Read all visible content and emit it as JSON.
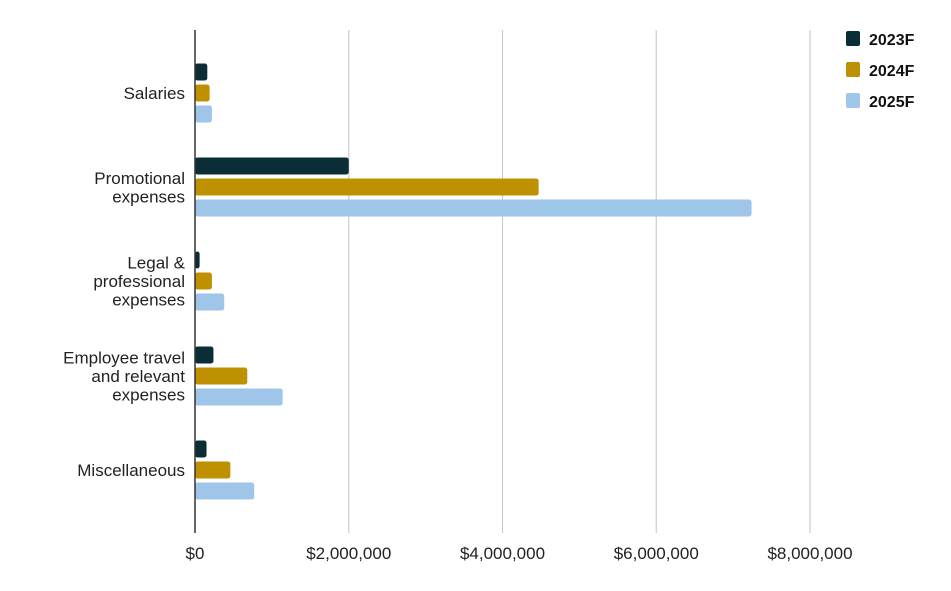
{
  "chart_data": {
    "type": "bar",
    "orientation": "horizontal",
    "categories": [
      [
        "Salaries"
      ],
      [
        "Promotional",
        "expenses"
      ],
      [
        "Legal &",
        "professional",
        "expenses"
      ],
      [
        "Employee travel",
        "and relevant",
        "expenses"
      ],
      [
        "Miscellaneous"
      ]
    ],
    "series": [
      {
        "name": "2023F",
        "color": "#0b2e36",
        "values": [
          160000,
          2000000,
          60000,
          240000,
          150000
        ]
      },
      {
        "name": "2024F",
        "color": "#bf9000",
        "values": [
          190000,
          4470000,
          220000,
          680000,
          460000
        ]
      },
      {
        "name": "2025F",
        "color": "#9fc5e8",
        "values": [
          220000,
          7240000,
          380000,
          1140000,
          770000
        ]
      }
    ],
    "x_ticks": [
      0,
      2000000,
      4000000,
      6000000,
      8000000
    ],
    "x_tick_labels": [
      "$0",
      "$2,000,000",
      "$4,000,000",
      "$6,000,000",
      "$8,000,000"
    ],
    "xlim": [
      0,
      8000000
    ],
    "grid": true,
    "legend_position": "top-right",
    "title": "",
    "xlabel": "",
    "ylabel": ""
  }
}
